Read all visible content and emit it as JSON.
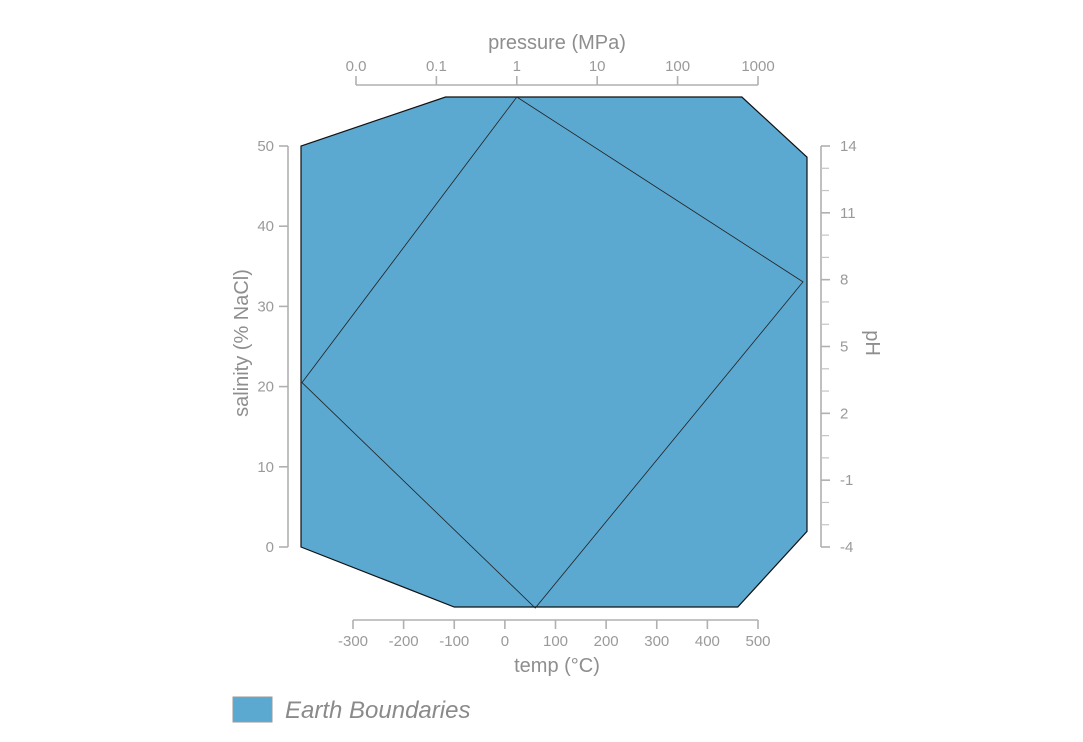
{
  "chart_data": {
    "type": "area",
    "axes": {
      "pressure": {
        "title": "pressure (MPa)",
        "scale": "log",
        "tick_labels": [
          "0.0",
          "0.1",
          "1",
          "10",
          "100",
          "1000"
        ],
        "tick_values": [
          0.01,
          0.1,
          1,
          10,
          100,
          1000
        ],
        "range": [
          0.01,
          1000
        ]
      },
      "temp": {
        "title": "temp (°C)",
        "tick_labels": [
          "-300",
          "-200",
          "-100",
          "0",
          "100",
          "200",
          "300",
          "400",
          "500"
        ],
        "tick_values": [
          -300,
          -200,
          -100,
          0,
          100,
          200,
          300,
          400,
          500
        ],
        "range": [
          -300,
          500
        ]
      },
      "salinity": {
        "title": "salinity (% NaCl)",
        "tick_labels": [
          "0",
          "10",
          "20",
          "30",
          "40",
          "50"
        ],
        "tick_values": [
          0,
          10,
          20,
          30,
          40,
          50
        ],
        "range": [
          0,
          50
        ]
      },
      "ph": {
        "title": "pH",
        "tick_labels": [
          "-4",
          "-1",
          "2",
          "5",
          "8",
          "11",
          "14"
        ],
        "tick_values": [
          -4,
          -1,
          2,
          5,
          8,
          11,
          14
        ],
        "minor_tick_values": [
          -3,
          -2,
          0,
          1,
          3,
          4,
          6,
          7,
          9,
          10,
          12,
          13
        ],
        "range": [
          -4,
          14
        ]
      }
    },
    "series": [
      {
        "name": "Earth Boundaries",
        "color": "#5ba8d0",
        "boundary": {
          "pressure_min": 0.13,
          "pressure_max": 630,
          "temp_min": -100,
          "temp_max": 460,
          "salinity_min": 0,
          "salinity_max": 50,
          "ph_min": -3.3,
          "ph_max": 13.5
        },
        "inner_quad": {
          "pressure": 1,
          "temp": 60,
          "salinity": 20.5,
          "ph": 7.9
        }
      }
    ],
    "legend": "bottom-left"
  }
}
